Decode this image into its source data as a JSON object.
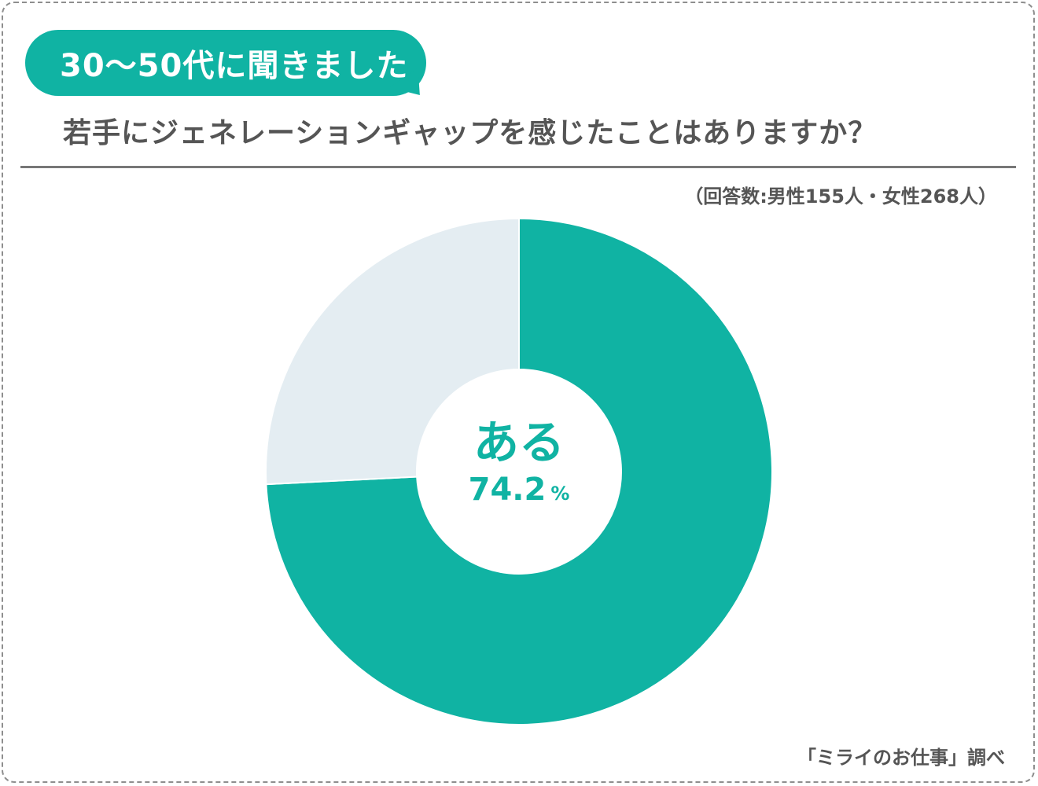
{
  "badge": {
    "text": "30〜50代に聞きました"
  },
  "question": {
    "text": "若手にジェネレーションギャップを感じたことはありますか？"
  },
  "note": {
    "text": "（回答数:男性155人・女性268人）"
  },
  "source": {
    "text": "「ミライのお仕事」調べ"
  },
  "colors": {
    "accent": "#10b3a3",
    "secondary": "#e4edf2",
    "text": "#555555"
  },
  "chart_data": {
    "type": "pie",
    "donut": true,
    "categories": [
      "ある",
      ""
    ],
    "values": [
      74.2,
      25.8
    ],
    "unit": "%",
    "colors": [
      "#10b3a3",
      "#e4edf2"
    ],
    "center_label": {
      "category": "ある",
      "value": "74.2",
      "unit": "%"
    }
  }
}
